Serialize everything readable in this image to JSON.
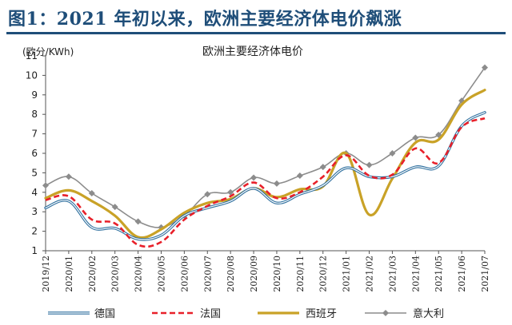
{
  "header": {
    "figure_title": "图1：2021 年初以来，欧洲主要经济体电价飙涨"
  },
  "chart_data": {
    "type": "line",
    "title": "欧洲主要经济体电价",
    "unit_label": "(欧分/KWh)",
    "ylim": [
      1,
      11
    ],
    "yticks": [
      1,
      2,
      3,
      4,
      5,
      6,
      7,
      8,
      9,
      10,
      11
    ],
    "x": [
      "2019/12",
      "2020/01",
      "2020/02",
      "2020/03",
      "2020/04",
      "2020/05",
      "2020/06",
      "2020/07",
      "2020/08",
      "2020/09",
      "2020/10",
      "2020/11",
      "2020/12",
      "2021/01",
      "2021/02",
      "2021/03",
      "2021/04",
      "2021/05",
      "2021/06",
      "2021/07"
    ],
    "grid": false,
    "legend_position": "bottom",
    "series": [
      {
        "name": "德国",
        "color": "#2e6f9e",
        "style": "double",
        "values": [
          3.2,
          3.55,
          2.2,
          2.15,
          1.6,
          1.8,
          2.8,
          3.2,
          3.55,
          4.2,
          3.45,
          3.9,
          4.35,
          5.25,
          4.8,
          4.8,
          5.3,
          5.35,
          7.4,
          8.1
        ]
      },
      {
        "name": "法国",
        "color": "#e8202a",
        "style": "dashed",
        "values": [
          3.6,
          3.8,
          2.6,
          2.4,
          1.3,
          1.45,
          2.6,
          3.3,
          3.8,
          4.5,
          3.7,
          4.0,
          4.8,
          5.9,
          4.85,
          4.9,
          6.25,
          5.5,
          7.35,
          7.8
        ]
      },
      {
        "name": "西班牙",
        "color": "#c9a227",
        "style": "solid",
        "values": [
          3.7,
          4.1,
          3.55,
          2.8,
          1.7,
          2.1,
          2.95,
          3.45,
          3.65,
          4.2,
          3.75,
          4.15,
          4.3,
          6.0,
          2.85,
          4.7,
          6.55,
          6.7,
          8.5,
          9.25
        ]
      },
      {
        "name": "意大利",
        "color": "#8c8c8c",
        "style": "marker",
        "values": [
          4.35,
          4.8,
          3.95,
          3.25,
          2.5,
          2.2,
          2.8,
          3.9,
          4.0,
          4.75,
          4.45,
          4.85,
          5.3,
          6.0,
          5.4,
          6.0,
          6.8,
          6.95,
          8.7,
          10.4
        ]
      }
    ]
  }
}
